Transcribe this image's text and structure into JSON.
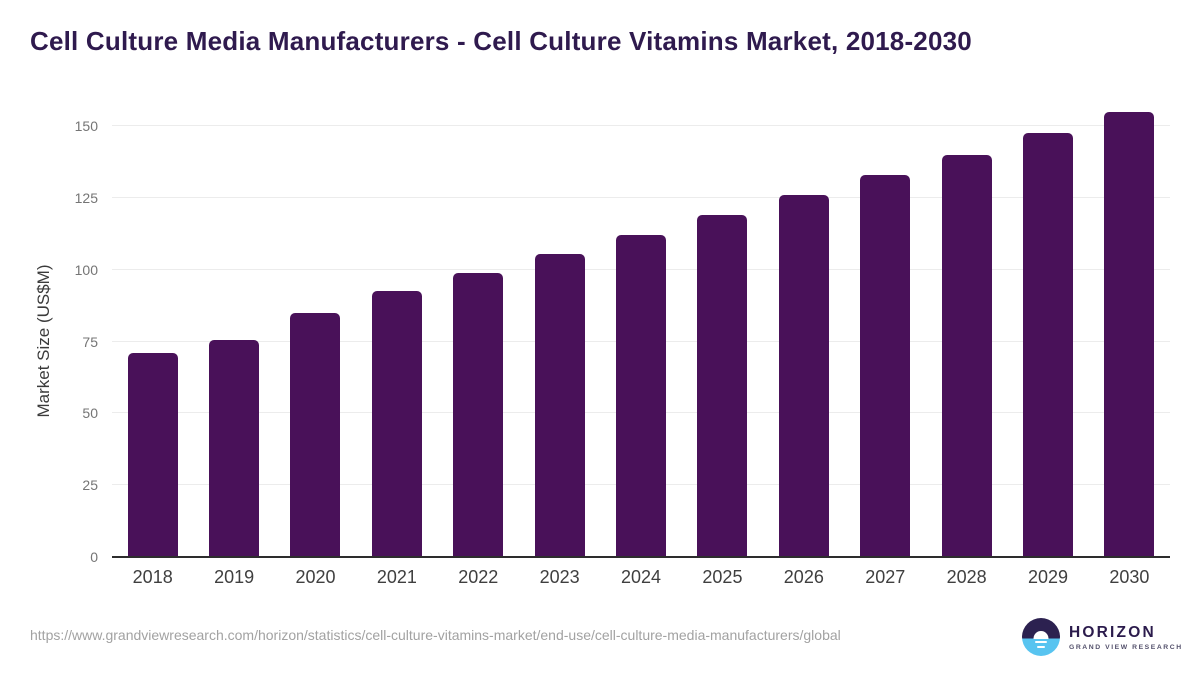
{
  "title": "Cell Culture Media Manufacturers - Cell Culture Vitamins Market, 2018-2030",
  "chart_data": {
    "type": "bar",
    "categories": [
      "2018",
      "2019",
      "2020",
      "2021",
      "2022",
      "2023",
      "2024",
      "2025",
      "2026",
      "2027",
      "2028",
      "2029",
      "2030"
    ],
    "values": [
      71,
      75.5,
      85,
      92.5,
      99,
      105.5,
      112,
      119,
      126,
      133,
      140,
      147.5,
      155
    ],
    "title": "Cell Culture Media Manufacturers - Cell Culture Vitamins Market, 2018-2030",
    "xlabel": "",
    "ylabel": "Market Size (US$M)",
    "ylim": [
      0,
      150
    ],
    "yticks": [
      0,
      25,
      50,
      75,
      100,
      125,
      150
    ],
    "grid": true,
    "legend": "none"
  },
  "colors": {
    "bar": "#491159",
    "title": "#2f1a4e",
    "gridline": "#ececec",
    "axis_line": "#2d2d2d",
    "logo_dark": "#2c2150",
    "logo_blue": "#58c4f0"
  },
  "footer": {
    "url": "https://www.grandviewresearch.com/horizon/statistics/cell-culture-vitamins-market/end-use/cell-culture-media-manufacturers/global",
    "logo_title": "HORIZON",
    "logo_subtitle": "GRAND VIEW RESEARCH"
  }
}
